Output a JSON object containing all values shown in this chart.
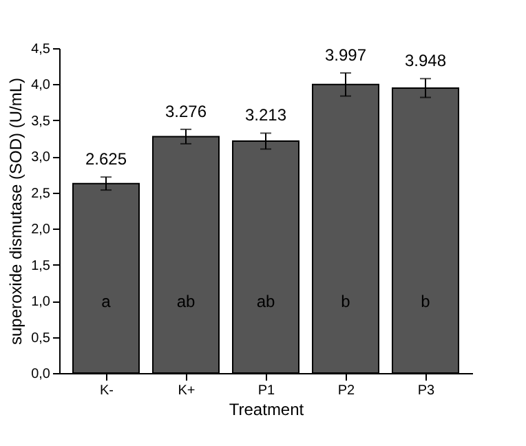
{
  "chart_data": {
    "type": "bar",
    "xlabel": "Treatment",
    "ylabel": "superoxide dismutase (SOD) (U/mL)",
    "categories": [
      "K-",
      "K+",
      "P1",
      "P2",
      "P3"
    ],
    "values": [
      2.625,
      3.276,
      3.213,
      3.997,
      3.948
    ],
    "errors": [
      0.09,
      0.1,
      0.11,
      0.16,
      0.13
    ],
    "color": "#555555",
    "data_labels": true,
    "ylim": [
      0,
      4.5
    ],
    "yticks": [
      {
        "value": 0,
        "label": "0,0"
      },
      {
        "value": 0.5,
        "label": "0,5"
      },
      {
        "value": 1,
        "label": "1,0"
      },
      {
        "value": 1.5,
        "label": "1,5"
      },
      {
        "value": 2,
        "label": "2,0"
      },
      {
        "value": 2.5,
        "label": "2,5"
      },
      {
        "value": 3,
        "label": "3,0"
      },
      {
        "value": 3.5,
        "label": "3,5"
      },
      {
        "value": 4,
        "label": "4,0"
      },
      {
        "value": 4.5,
        "label": "4,5"
      }
    ],
    "annotations": [
      "a",
      "ab",
      "ab",
      "b",
      "b"
    ],
    "grid": false
  }
}
